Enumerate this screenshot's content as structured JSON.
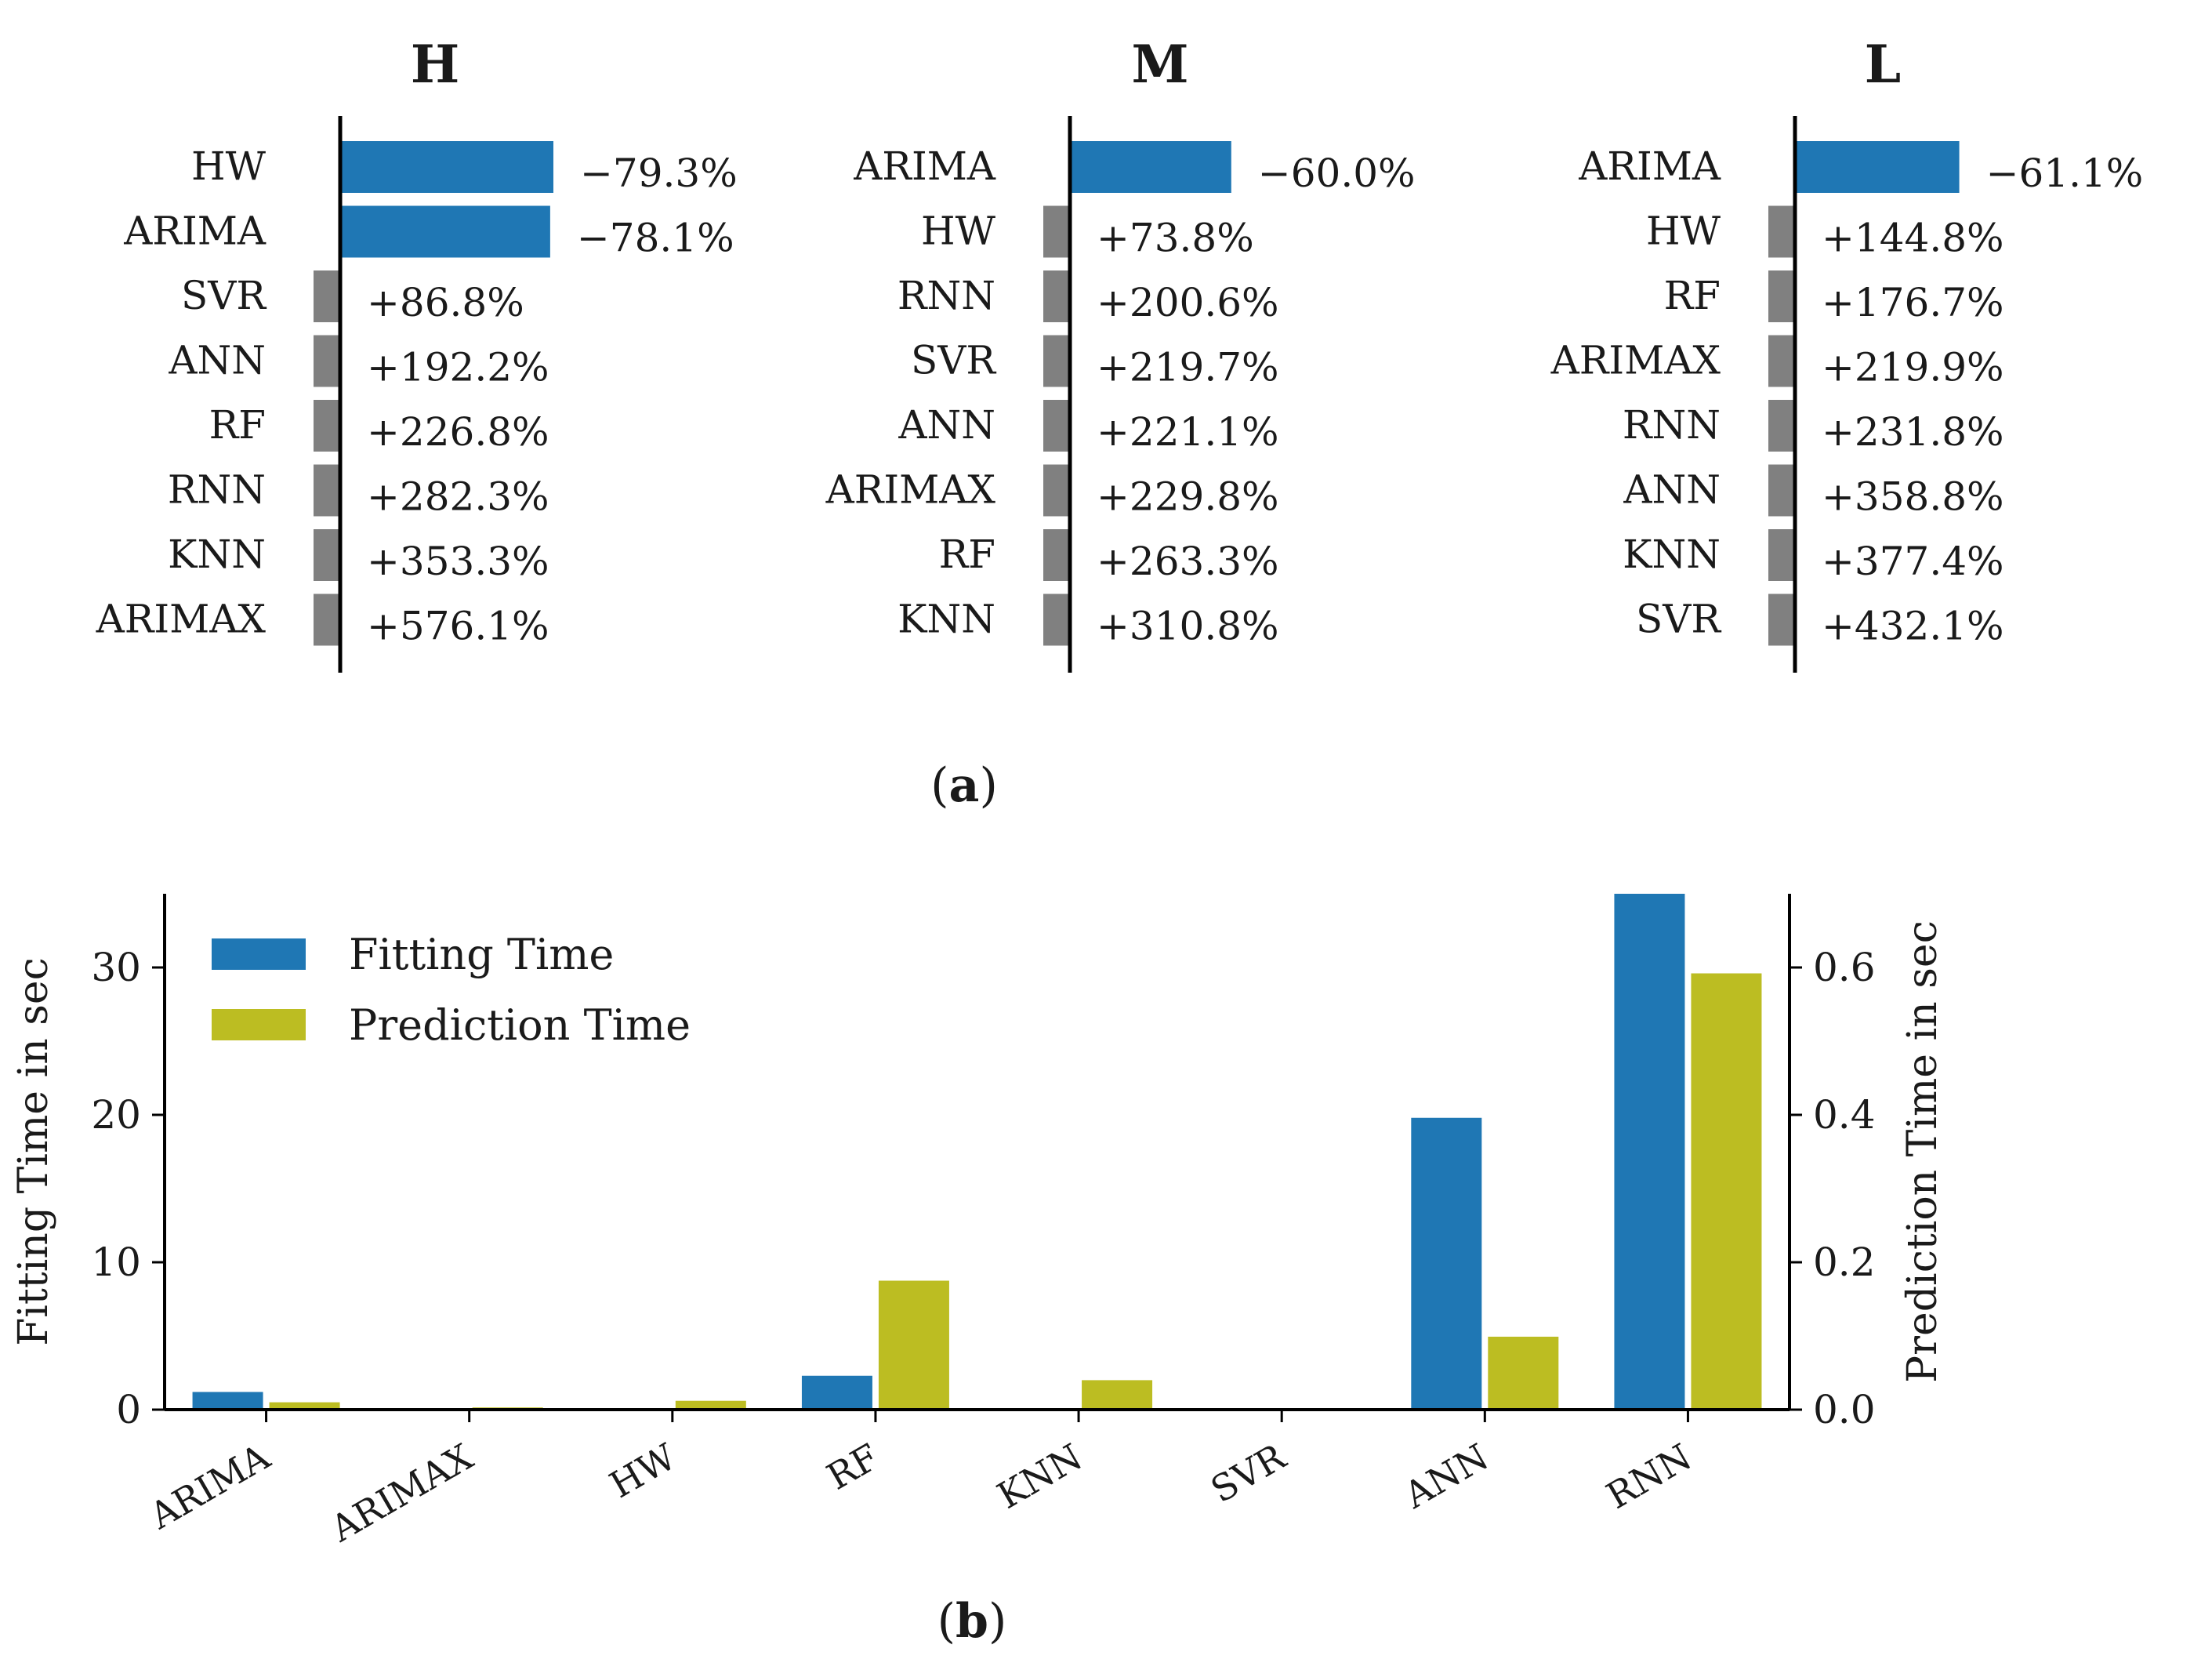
{
  "figure": {
    "panel_a_caption": "(a)",
    "panel_b_caption": "(b)",
    "panel_a_caption_letter": "a",
    "panel_b_caption_letter": "b"
  },
  "colors": {
    "negative_bar": "#1f77b4",
    "positive_bar": "#808080",
    "fitting": "#1f77b4",
    "prediction": "#bcbd22",
    "axis": "#000000"
  },
  "chart_data": [
    {
      "type": "bar",
      "orientation": "horizontal",
      "title": "H",
      "categories": [
        "HW",
        "ARIMA",
        "SVR",
        "ANN",
        "RF",
        "RNN",
        "KNN",
        "ARIMAX"
      ],
      "values": [
        -79.3,
        -78.1,
        86.8,
        192.2,
        226.8,
        282.3,
        353.3,
        576.1
      ],
      "labels": [
        "−79.3%",
        "−78.1%",
        "+86.8%",
        "+192.2%",
        "+226.8%",
        "+282.3%",
        "+353.3%",
        "+576.1%"
      ],
      "unit": "%"
    },
    {
      "type": "bar",
      "orientation": "horizontal",
      "title": "M",
      "categories": [
        "ARIMA",
        "HW",
        "RNN",
        "SVR",
        "ANN",
        "ARIMAX",
        "RF",
        "KNN"
      ],
      "values": [
        -60.0,
        73.8,
        200.6,
        219.7,
        221.1,
        229.8,
        263.3,
        310.8
      ],
      "labels": [
        "−60.0%",
        "+73.8%",
        "+200.6%",
        "+219.7%",
        "+221.1%",
        "+229.8%",
        "+263.3%",
        "+310.8%"
      ],
      "unit": "%"
    },
    {
      "type": "bar",
      "orientation": "horizontal",
      "title": "L",
      "categories": [
        "ARIMA",
        "HW",
        "RF",
        "ARIMAX",
        "RNN",
        "ANN",
        "KNN",
        "SVR"
      ],
      "values": [
        -61.1,
        144.8,
        176.7,
        219.9,
        231.8,
        358.8,
        377.4,
        432.1
      ],
      "labels": [
        "−61.1%",
        "+144.8%",
        "+176.7%",
        "+219.9%",
        "+231.8%",
        "+358.8%",
        "+377.4%",
        "+432.1%"
      ],
      "unit": "%"
    },
    {
      "type": "bar",
      "orientation": "vertical",
      "dual_axis": true,
      "categories": [
        "ARIMA",
        "ARIMAX",
        "HW",
        "RF",
        "KNN",
        "SVR",
        "ANN",
        "RNN"
      ],
      "series": [
        {
          "name": "Fitting Time",
          "axis": "left",
          "values": [
            1.2,
            0.0,
            0.0,
            2.3,
            0.0,
            0.0,
            19.8,
            35.0
          ]
        },
        {
          "name": "Prediction Time",
          "axis": "right",
          "values": [
            0.01,
            0.003,
            0.012,
            0.175,
            0.04,
            0.001,
            0.099,
            0.592
          ]
        }
      ],
      "ylabel": "Fitting Time in sec",
      "y2label": "Prediction Time in sec",
      "ylim": [
        0,
        35
      ],
      "y2lim": [
        0,
        0.7
      ],
      "yticks": [
        "0",
        "10",
        "20",
        "30"
      ],
      "yticks_values": [
        0,
        10,
        20,
        30
      ],
      "y2ticks": [
        "0.0",
        "0.2",
        "0.4",
        "0.6"
      ],
      "y2ticks_values": [
        0,
        0.2,
        0.4,
        0.6
      ],
      "legend": "top-left"
    }
  ]
}
